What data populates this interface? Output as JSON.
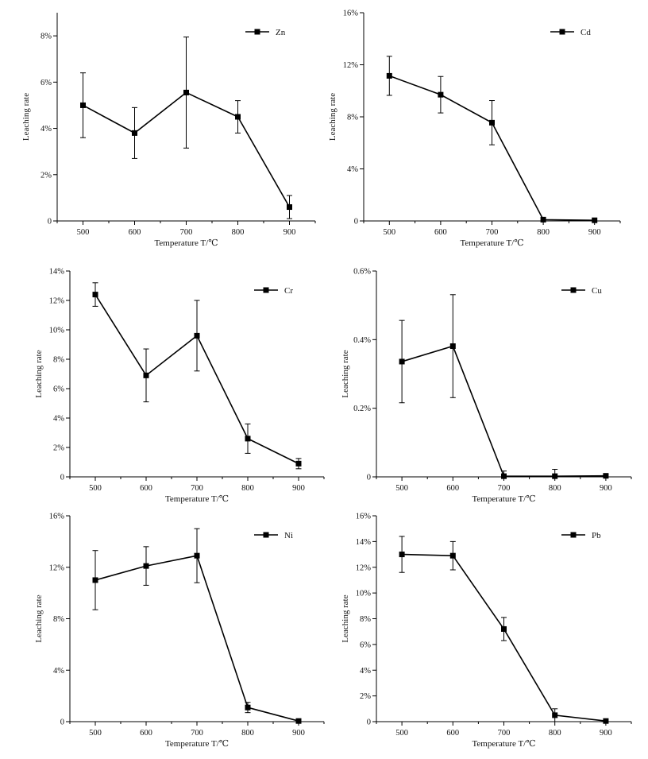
{
  "chart_data": [
    {
      "type": "line",
      "title": "Zn",
      "legend": "Zn",
      "legend_position": "top-right",
      "xlabel": "Temperature T/℃",
      "ylabel": "Leaching rate",
      "x": [
        500,
        600,
        700,
        800,
        900
      ],
      "xticks": [
        "500",
        "600",
        "700",
        "800",
        "900"
      ],
      "xlim": [
        450,
        950
      ],
      "ylim": [
        0,
        9
      ],
      "yticks": [
        0,
        2,
        4,
        6,
        8
      ],
      "ytick_labels": [
        "0",
        "2%",
        "4%",
        "6%",
        "8%"
      ],
      "values": [
        5.0,
        3.8,
        5.55,
        4.5,
        0.6
      ],
      "errors": [
        1.4,
        1.1,
        2.4,
        0.7,
        0.5
      ]
    },
    {
      "type": "line",
      "title": "Cd",
      "legend": "Cd",
      "legend_position": "top-right",
      "xlabel": "Temperature T/℃",
      "ylabel": "Leaching rate",
      "x": [
        500,
        600,
        700,
        800,
        900
      ],
      "xticks": [
        "500",
        "600",
        "700",
        "800",
        "900"
      ],
      "xlim": [
        450,
        950
      ],
      "ylim": [
        0,
        16
      ],
      "yticks": [
        0,
        4,
        8,
        12,
        16
      ],
      "ytick_labels": [
        "0",
        "4%",
        "8%",
        "12%",
        "16%"
      ],
      "values": [
        11.15,
        9.7,
        7.55,
        0.1,
        0.05
      ],
      "errors": [
        1.5,
        1.4,
        1.7,
        0.0,
        0.0
      ]
    },
    {
      "type": "line",
      "title": "Cr",
      "legend": "Cr",
      "legend_position": "top-right",
      "xlabel": "Temperature T/℃",
      "ylabel": "Leaching rate",
      "x": [
        500,
        600,
        700,
        800,
        900
      ],
      "xticks": [
        "500",
        "600",
        "700",
        "800",
        "900"
      ],
      "xlim": [
        450,
        950
      ],
      "ylim": [
        0,
        14
      ],
      "yticks": [
        0,
        2,
        4,
        6,
        8,
        10,
        12,
        14
      ],
      "ytick_labels": [
        "0",
        "2%",
        "4%",
        "6%",
        "8%",
        "10%",
        "12%",
        "14%"
      ],
      "values": [
        12.4,
        6.9,
        9.6,
        2.6,
        0.9
      ],
      "errors": [
        0.8,
        1.8,
        2.4,
        1.0,
        0.35
      ]
    },
    {
      "type": "line",
      "title": "Cu",
      "legend": "Cu",
      "legend_position": "top-right",
      "xlabel": "Temperature T/℃",
      "ylabel": "Leaching rate",
      "x": [
        500,
        600,
        700,
        800,
        900
      ],
      "xticks": [
        "500",
        "600",
        "700",
        "800",
        "900"
      ],
      "xlim": [
        450,
        950
      ],
      "ylim": [
        0,
        0.6
      ],
      "yticks": [
        0,
        0.2,
        0.4,
        0.6
      ],
      "ytick_labels": [
        "0",
        "0.2%",
        "0.4%",
        "0.6%"
      ],
      "values": [
        0.336,
        0.381,
        0.002,
        0.002,
        0.003
      ],
      "errors": [
        0.12,
        0.15,
        0.015,
        0.02,
        0.003
      ]
    },
    {
      "type": "line",
      "title": "Ni",
      "legend": "Ni",
      "legend_position": "top-right",
      "xlabel": "Temperature T/℃",
      "ylabel": "Leaching rate",
      "x": [
        500,
        600,
        700,
        800,
        900
      ],
      "xticks": [
        "500",
        "600",
        "700",
        "800",
        "900"
      ],
      "xlim": [
        450,
        950
      ],
      "ylim": [
        0,
        16
      ],
      "yticks": [
        0,
        4,
        8,
        12,
        16
      ],
      "ytick_labels": [
        "0",
        "4%",
        "8%",
        "12%",
        "16%"
      ],
      "values": [
        11.0,
        12.1,
        12.9,
        1.1,
        0.05
      ],
      "errors": [
        2.3,
        1.5,
        2.1,
        0.4,
        0.0
      ]
    },
    {
      "type": "line",
      "title": "Pb",
      "legend": "Pb",
      "legend_position": "top-right",
      "xlabel": "Temperature T/℃",
      "ylabel": "Leaching rate",
      "x": [
        500,
        600,
        700,
        800,
        900
      ],
      "xticks": [
        "500",
        "600",
        "700",
        "800",
        "900"
      ],
      "xlim": [
        450,
        950
      ],
      "ylim": [
        0,
        16
      ],
      "yticks": [
        0,
        2,
        4,
        6,
        8,
        10,
        12,
        14,
        16
      ],
      "ytick_labels": [
        "0",
        "2%",
        "4%",
        "6%",
        "8%",
        "10%",
        "12%",
        "14%",
        "16%"
      ],
      "values": [
        13.0,
        12.9,
        7.2,
        0.5,
        0.05
      ],
      "errors": [
        1.4,
        1.1,
        0.9,
        0.5,
        0.0
      ]
    }
  ]
}
